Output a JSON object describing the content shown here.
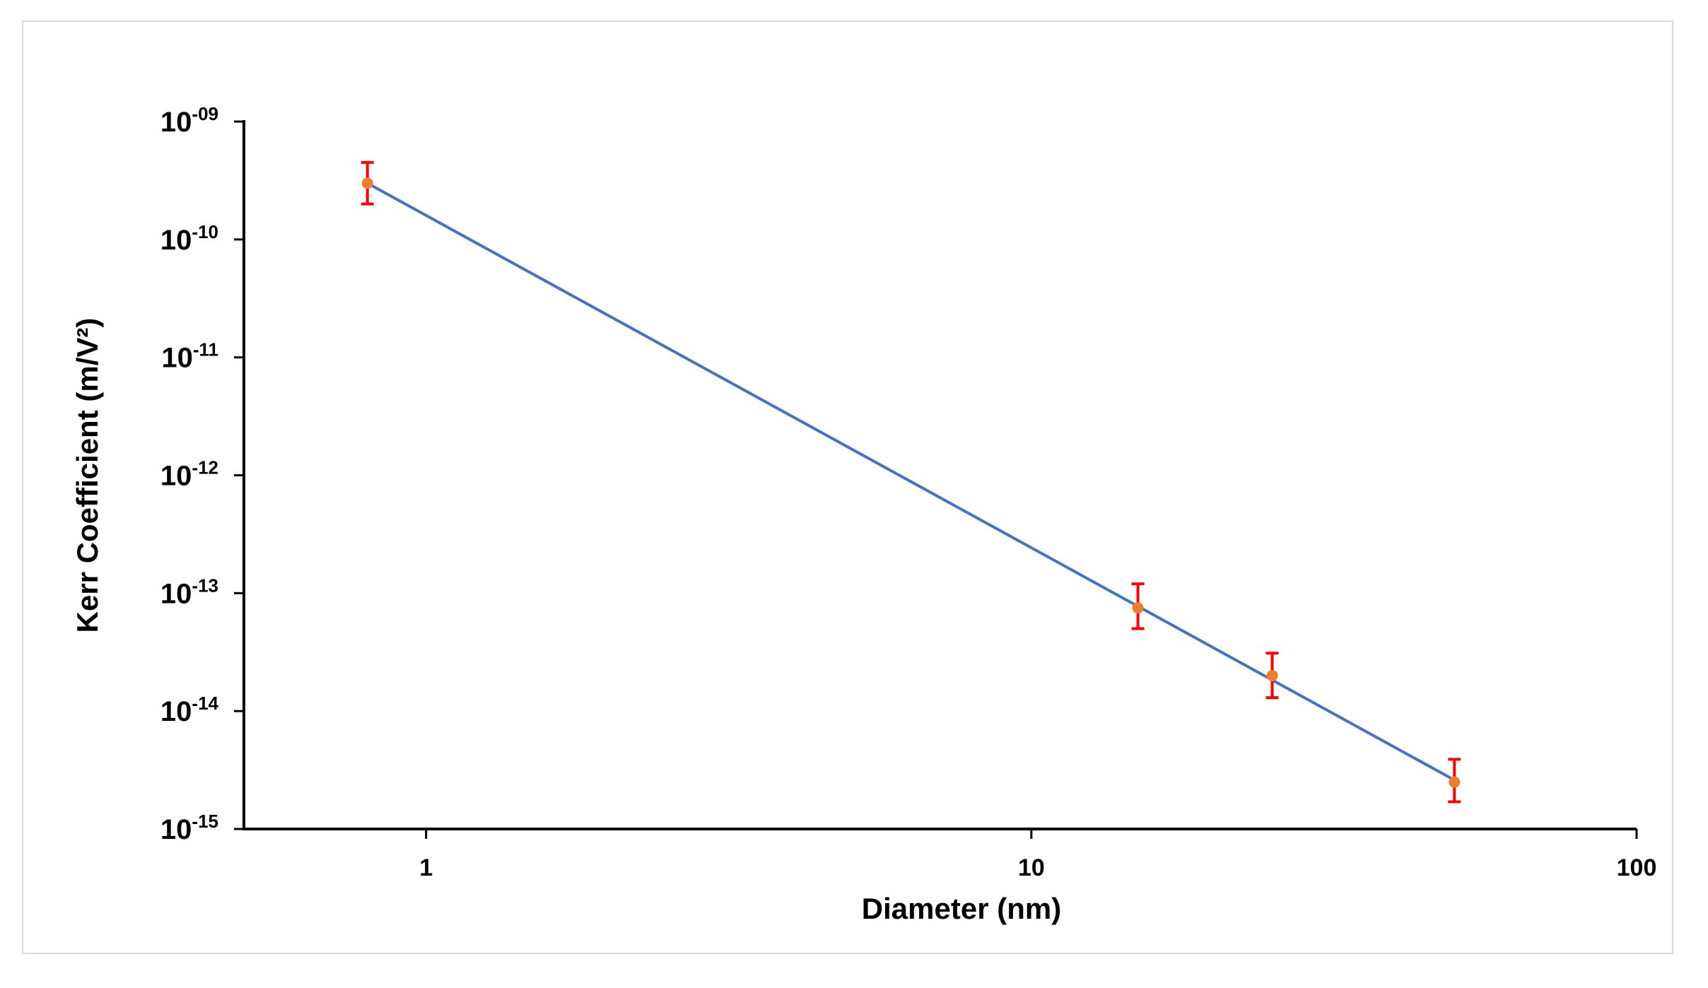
{
  "chart_data": {
    "type": "scatter",
    "title": "",
    "xlabel": "Diameter (nm)",
    "ylabel": "Kerr Coefficient (m/V²)",
    "xscale": "log",
    "yscale": "log",
    "xlim": [
      0.5,
      100
    ],
    "ylim": [
      1e-15,
      1e-09
    ],
    "x_ticks": [
      {
        "value": 1,
        "label": "1"
      },
      {
        "value": 10,
        "label": "10"
      },
      {
        "value": 100,
        "label": "100"
      }
    ],
    "y_ticks": [
      {
        "value": 1e-09,
        "base": "10",
        "exp": "-09"
      },
      {
        "value": 1e-10,
        "base": "10",
        "exp": "-10"
      },
      {
        "value": 1e-11,
        "base": "10",
        "exp": "-11"
      },
      {
        "value": 1e-12,
        "base": "10",
        "exp": "-12"
      },
      {
        "value": 1e-13,
        "base": "10",
        "exp": "-13"
      },
      {
        "value": 1e-14,
        "base": "10",
        "exp": "-14"
      },
      {
        "value": 1e-15,
        "base": "10",
        "exp": "-15"
      }
    ],
    "grid": false,
    "legend": "none",
    "series": [
      {
        "points": [
          {
            "x": 0.8,
            "y": 3e-10,
            "y_low": 2e-10,
            "y_high": 4.5e-10
          },
          {
            "x": 15,
            "y": 7.5e-14,
            "y_low": 5e-14,
            "y_high": 1.2e-13
          },
          {
            "x": 25,
            "y": 2e-14,
            "y_low": 1.3e-14,
            "y_high": 3.1e-14
          },
          {
            "x": 50,
            "y": 2.5e-15,
            "y_low": 1.7e-15,
            "y_high": 3.9e-15
          }
        ],
        "marker_color": "#ed7d31",
        "error_bar_color": "#ff0000"
      }
    ],
    "fit_line": {
      "x_start": 0.8,
      "y_start": 3e-10,
      "x_end": 50,
      "y_end": 2.6e-15,
      "color": "#4472c4"
    },
    "axis_color": "#000000"
  }
}
